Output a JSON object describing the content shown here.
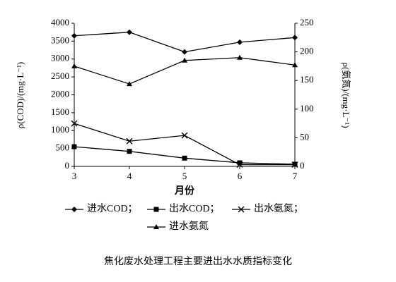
{
  "chart_data": {
    "type": "line",
    "title": "焦化废水处理工程主要进出水水质指标变化",
    "x_label": "月份",
    "y_label": "ρ(COD)/(mg·L⁻¹)",
    "y2_label": "ρ(氨氮)/(mg·L⁻¹)",
    "x": [
      3,
      4,
      5,
      6,
      7
    ],
    "xlim": [
      3,
      7
    ],
    "xticks": [
      3,
      4,
      5,
      6,
      7
    ],
    "ylim": [
      0,
      4000
    ],
    "yticks": [
      0,
      500,
      1000,
      1500,
      2000,
      2500,
      3000,
      3500,
      4000
    ],
    "y2lim": [
      0,
      250
    ],
    "y2ticks": [
      0,
      50,
      100,
      150,
      200,
      250
    ],
    "series": [
      {
        "name": "进水COD；",
        "color": "#000000",
        "marker": "diamond",
        "values": [
          3650,
          3750,
          3200,
          3470,
          3600
        ]
      },
      {
        "name": "出水COD；",
        "color": "#000000",
        "marker": "square",
        "values": [
          550,
          420,
          230,
          100,
          60
        ]
      },
      {
        "name": "出水氨氮；",
        "color": "#000000",
        "marker": "x",
        "axis": "y2",
        "values": [
          75,
          44,
          54,
          3,
          3
        ]
      },
      {
        "name": "进水氨氮",
        "color": "#000000",
        "marker": "triangle",
        "axis": "y2",
        "values": [
          175,
          144,
          185,
          190,
          177
        ]
      }
    ]
  }
}
